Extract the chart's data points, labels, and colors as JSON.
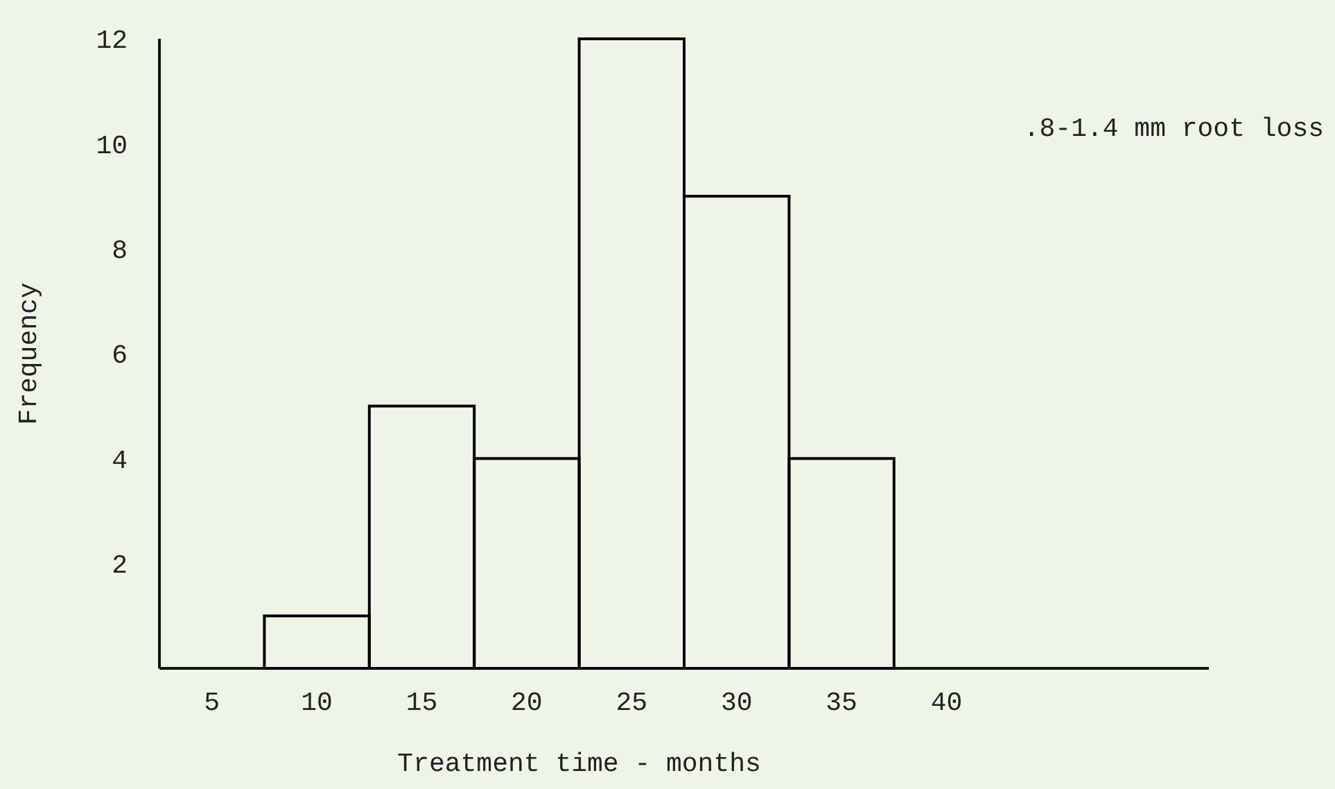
{
  "chart_data": {
    "type": "histogram",
    "xlabel": "Treatment time - months",
    "ylabel": "Frequency",
    "bins": [
      2.5,
      7.5,
      12.5,
      17.5,
      22.5,
      27.5,
      32.5,
      37.5,
      42.5
    ],
    "values": [
      0,
      1,
      5,
      4,
      12,
      9,
      4,
      0
    ],
    "color": "#000000",
    "xlim": [
      2.5,
      52.5
    ],
    "xticks": [
      5,
      10,
      15,
      20,
      25,
      30,
      35,
      40
    ],
    "ylim": [
      0,
      12
    ],
    "yticks": [
      2,
      4,
      6,
      8,
      10,
      12
    ],
    "annotations": [
      ".8-1.4 mm root loss"
    ]
  }
}
